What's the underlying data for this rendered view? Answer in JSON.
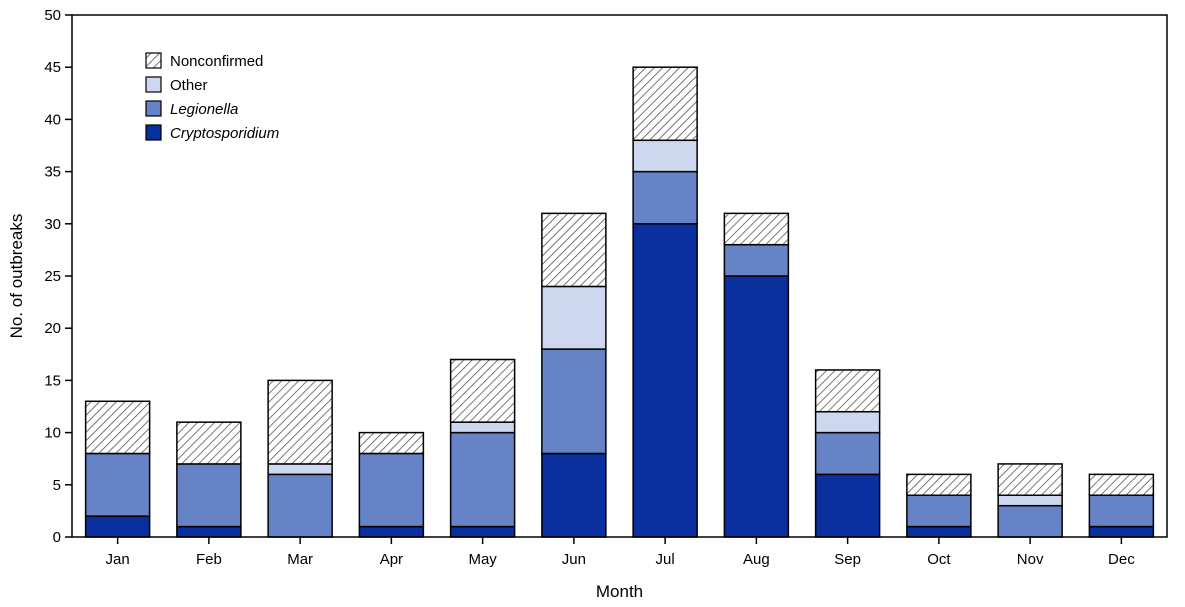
{
  "chart_data": {
    "type": "bar",
    "stacked": true,
    "categories": [
      "Jan",
      "Feb",
      "Mar",
      "Apr",
      "May",
      "Jun",
      "Jul",
      "Aug",
      "Sep",
      "Oct",
      "Nov",
      "Dec"
    ],
    "series": [
      {
        "name": "Cryptosporidium",
        "italic": true,
        "color": "#0a2f9e",
        "values": [
          2,
          1,
          0,
          1,
          1,
          8,
          30,
          25,
          6,
          1,
          0,
          1
        ]
      },
      {
        "name": "Legionella",
        "italic": true,
        "color": "#6583c6",
        "values": [
          6,
          6,
          6,
          7,
          9,
          10,
          5,
          3,
          4,
          3,
          3,
          3
        ]
      },
      {
        "name": "Other",
        "italic": false,
        "color": "#cdd7ef",
        "values": [
          0,
          0,
          1,
          0,
          1,
          6,
          3,
          0,
          2,
          0,
          1,
          0
        ]
      },
      {
        "name": "Nonconfirmed",
        "italic": false,
        "color": "hatched",
        "values": [
          5,
          4,
          8,
          2,
          6,
          7,
          7,
          3,
          4,
          2,
          3,
          2
        ]
      }
    ],
    "legend_order": [
      "Nonconfirmed",
      "Other",
      "Legionella",
      "Cryptosporidium"
    ],
    "legend_position": "top-left",
    "xlabel": "Month",
    "ylabel": "No. of outbreaks",
    "ylim": [
      0,
      50
    ],
    "yticks": [
      0,
      5,
      10,
      15,
      20,
      25,
      30,
      35,
      40,
      45,
      50
    ],
    "grid": false
  }
}
